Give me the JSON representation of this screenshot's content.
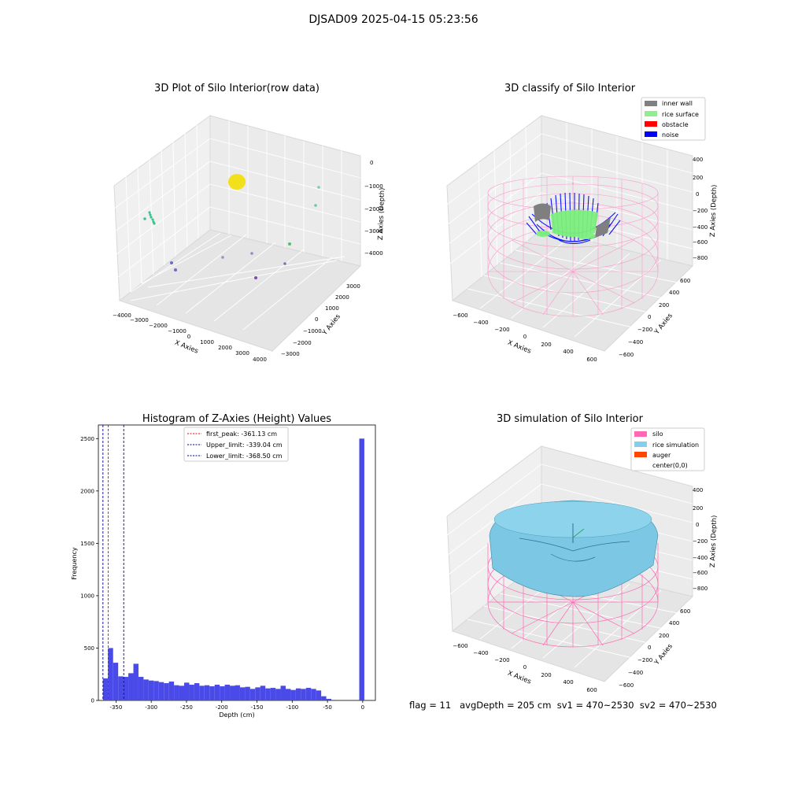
{
  "figure": {
    "suptitle": "DJSAD09 2025-04-15 05:23:56",
    "footer": "flag = 11   avgDepth = 205 cm  sv1 = 470~2530  sv2 = 470~2530"
  },
  "chart_data": [
    {
      "type": "scatter",
      "title": "3D Plot of Silo Interior(row data)",
      "xlabel": "X Axies",
      "ylabel": "Y Axies",
      "zlabel": "Z Axies (Depth)",
      "x_ticks": [
        "−4000",
        "−3000",
        "−2000",
        "−1000",
        "0",
        "1000",
        "2000",
        "3000",
        "4000"
      ],
      "y_ticks": [
        "−3000",
        "−2000",
        "−1000",
        "0",
        "1000",
        "2000",
        "3000"
      ],
      "z_ticks": [
        "0",
        "−1000",
        "−2000",
        "−3000",
        "−4000"
      ],
      "xlim": [
        -4000,
        4000
      ],
      "ylim": [
        -3000,
        3000
      ],
      "zlim": [
        -4500,
        0
      ],
      "grid": true
    },
    {
      "type": "scatter",
      "title": "3D classify of Silo Interior",
      "xlabel": "X Axies",
      "ylabel": "Y Axies",
      "zlabel": "Z Axies (Depth)",
      "x_ticks": [
        "−600",
        "−400",
        "−200",
        "0",
        "200",
        "400",
        "600"
      ],
      "y_ticks": [
        "−600",
        "−400",
        "−200",
        "0",
        "200",
        "400",
        "600"
      ],
      "z_ticks": [
        "400",
        "200",
        "0",
        "−200",
        "−400",
        "−600",
        "−800"
      ],
      "xlim": [
        -650,
        650
      ],
      "ylim": [
        -650,
        650
      ],
      "zlim": [
        -900,
        450
      ],
      "legend_position": "top-right",
      "legend": [
        {
          "label": "inner wall",
          "color": "#808080"
        },
        {
          "label": "rice surface",
          "color": "#90ee90"
        },
        {
          "label": "obstacle",
          "color": "#ff0000"
        },
        {
          "label": "noise",
          "color": "#0000ff"
        }
      ],
      "grid": true
    },
    {
      "type": "bar",
      "title": "Histogram of Z-Axies (Height) Values",
      "xlabel": "Depth (cm)",
      "ylabel": "Frequency",
      "xlim": [
        -375,
        18
      ],
      "ylim": [
        0,
        2630
      ],
      "x_ticks": [
        -350,
        -300,
        -250,
        -200,
        -150,
        -100,
        -50,
        0
      ],
      "y_ticks": [
        0,
        500,
        1000,
        1500,
        2000,
        2500
      ],
      "bin_width": 7.2,
      "bins_start": [
        -368.5,
        -361.3,
        -354.1,
        -346.9,
        -339.7,
        -332.5,
        -325.3,
        -318.1,
        -310.9,
        -303.7,
        -296.5,
        -289.3,
        -282.1,
        -274.9,
        -267.7,
        -260.5,
        -253.3,
        -246.1,
        -238.9,
        -231.7,
        -224.5,
        -217.3,
        -210.1,
        -202.9,
        -195.7,
        -188.5,
        -181.3,
        -174.1,
        -166.9,
        -159.7,
        -152.5,
        -145.3,
        -138.1,
        -130.9,
        -123.7,
        -116.5,
        -109.3,
        -102.1,
        -94.9,
        -87.7,
        -80.5,
        -73.3,
        -66.1,
        -58.9,
        -51.7,
        -44.5,
        -4.9
      ],
      "values": [
        210,
        500,
        360,
        230,
        225,
        260,
        350,
        225,
        200,
        190,
        185,
        175,
        165,
        180,
        145,
        140,
        170,
        150,
        165,
        140,
        145,
        135,
        150,
        135,
        150,
        140,
        145,
        125,
        130,
        110,
        125,
        140,
        115,
        120,
        110,
        140,
        110,
        100,
        115,
        110,
        120,
        110,
        95,
        40,
        15,
        5,
        2500
      ],
      "vlines": [
        {
          "label": "first_peak: -361.13 cm",
          "x": -361.13,
          "color": "#ff0000"
        },
        {
          "label": "Upper_limit: -339.04 cm",
          "x": -339.04,
          "color": "#00008b"
        },
        {
          "label": "Lower_limit: -368.50 cm",
          "x": -368.5,
          "color": "#00008b"
        }
      ],
      "legend_position": "top-center",
      "bar_color": "#4a4ae8",
      "grid": false
    },
    {
      "type": "area",
      "title": "3D simulation of Silo Interior",
      "xlabel": "X Axies",
      "ylabel": "Y Axies",
      "zlabel": "Z Axies (Depth)",
      "x_ticks": [
        "−600",
        "−400",
        "−200",
        "0",
        "200",
        "400",
        "600"
      ],
      "y_ticks": [
        "−600",
        "−400",
        "−200",
        "0",
        "200",
        "400",
        "600"
      ],
      "z_ticks": [
        "400",
        "200",
        "0",
        "−200",
        "−400",
        "−600",
        "−800"
      ],
      "xlim": [
        -650,
        650
      ],
      "ylim": [
        -650,
        650
      ],
      "zlim": [
        -900,
        450
      ],
      "legend_position": "top-right",
      "legend": [
        {
          "label": "silo",
          "color": "#ff69b4"
        },
        {
          "label": "rice simulation",
          "color": "#87ceeb"
        },
        {
          "label": "auger",
          "color": "#ff4500"
        },
        {
          "label": "center(0,0)",
          "color": "#ffffff"
        }
      ],
      "grid": true
    }
  ]
}
